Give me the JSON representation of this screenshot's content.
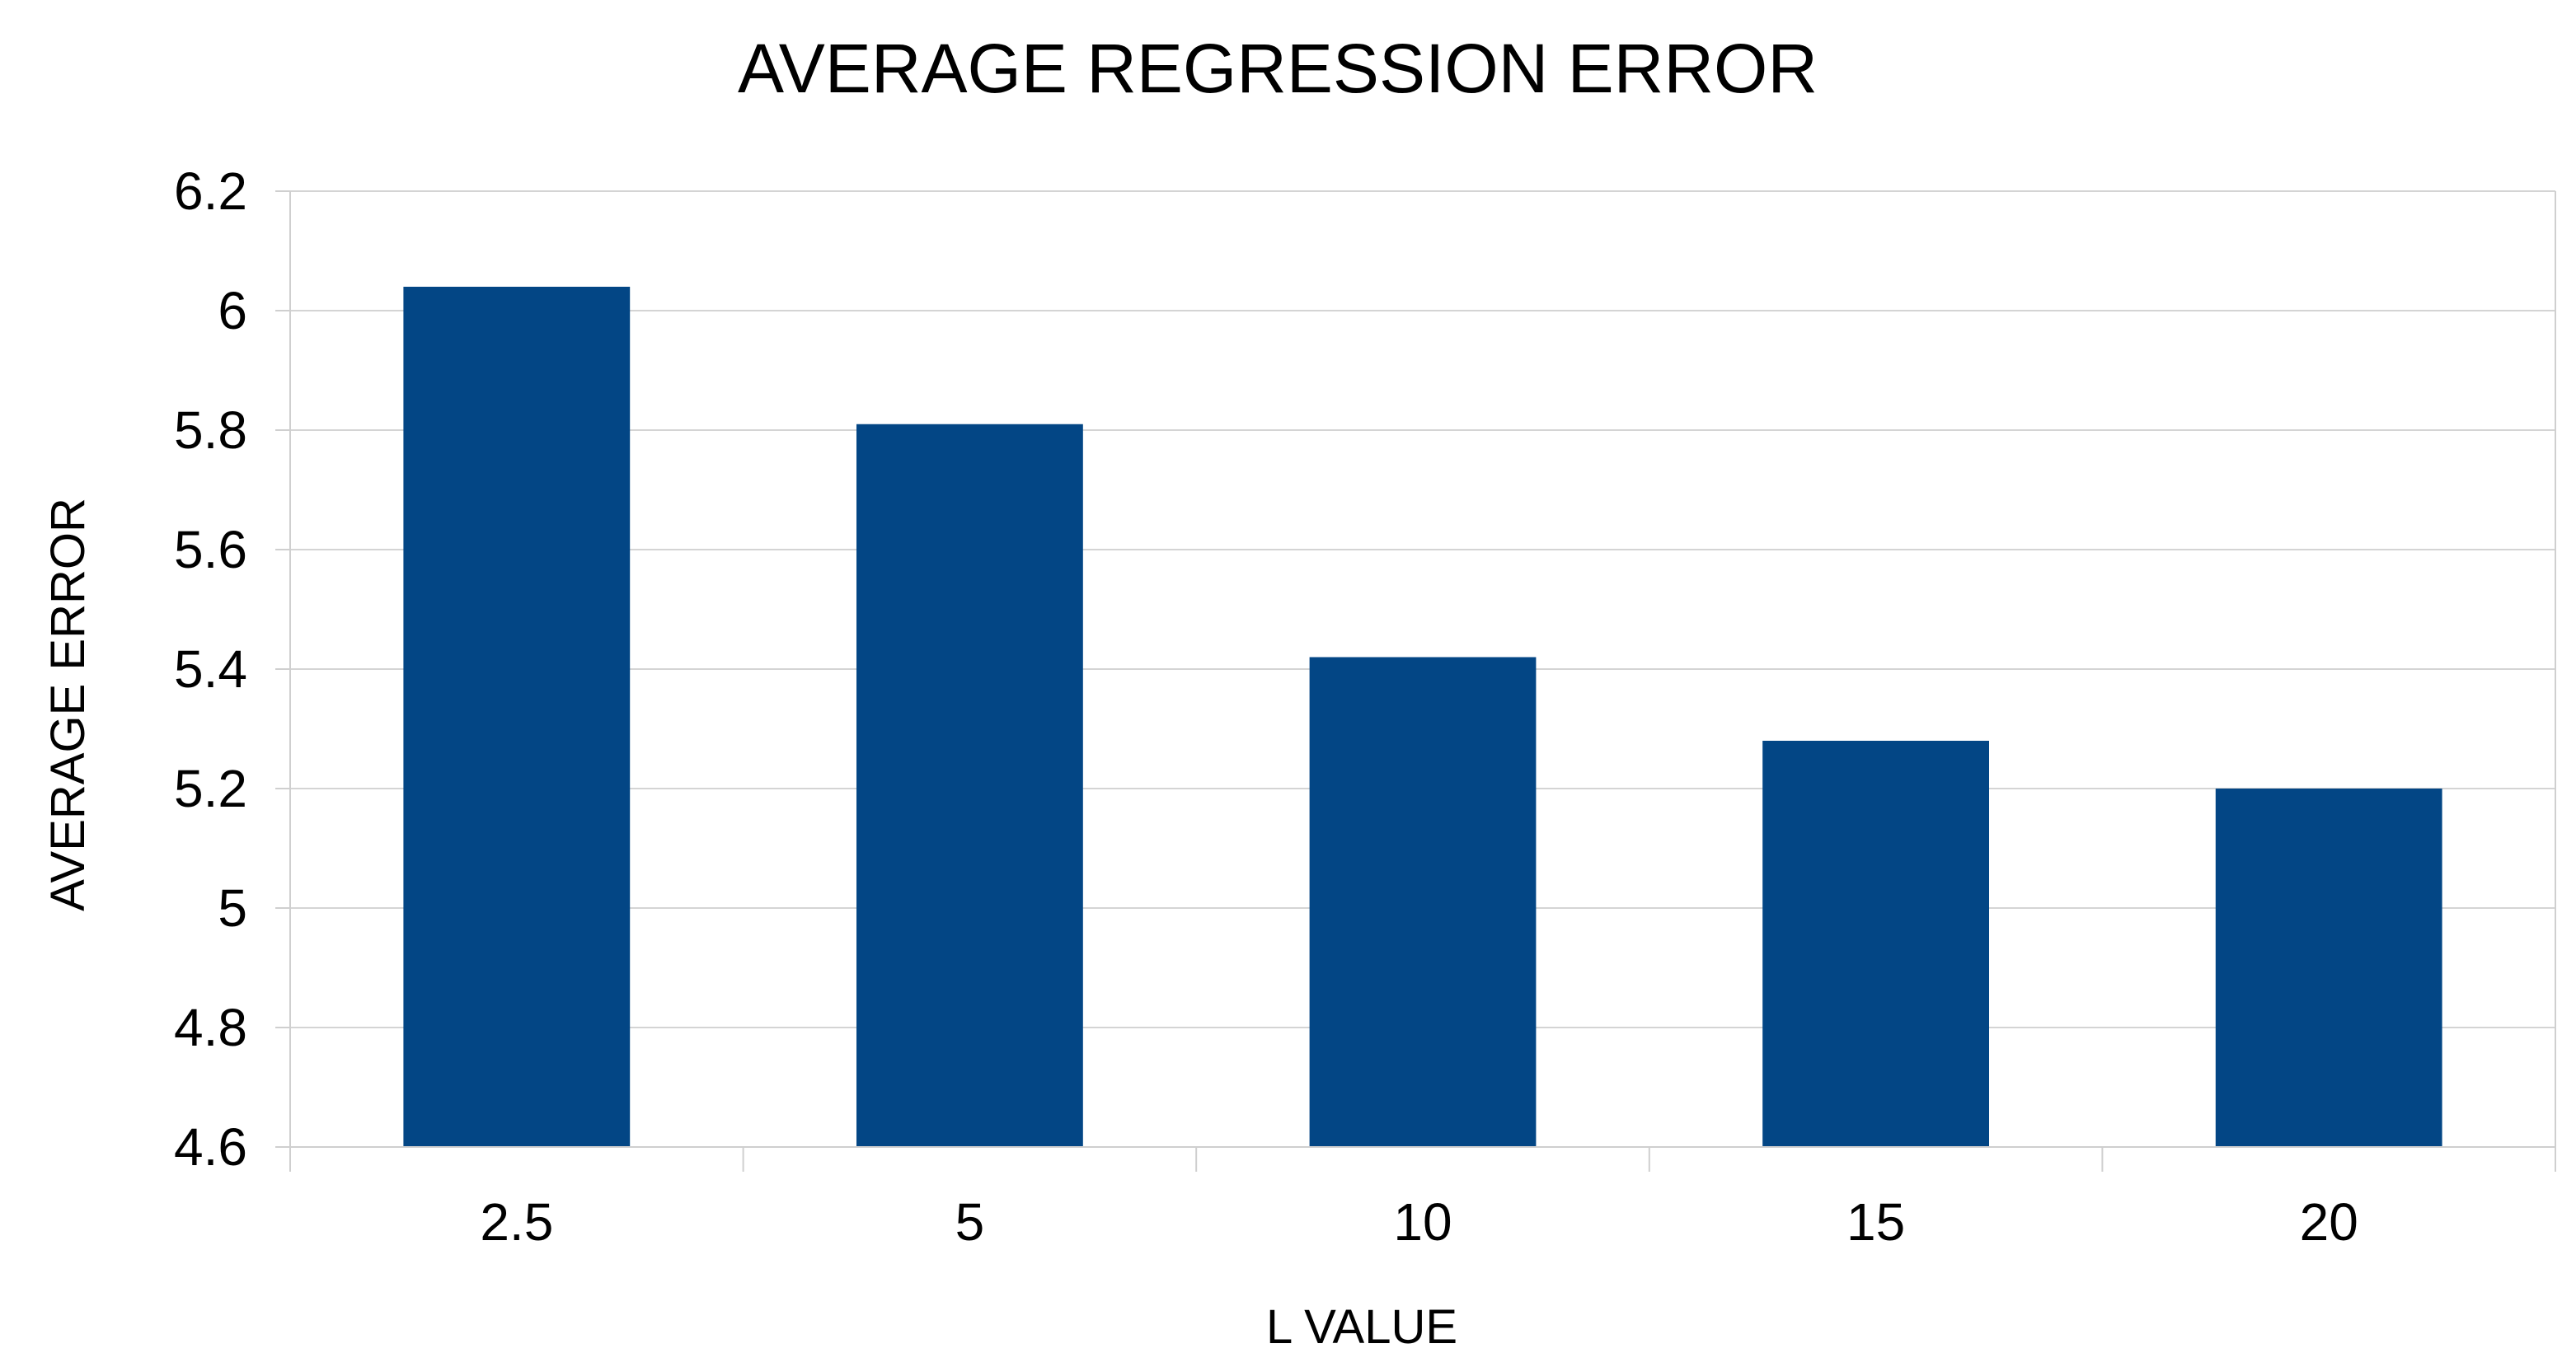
{
  "chart_data": {
    "type": "bar",
    "title": "AVERAGE REGRESSION ERROR",
    "xlabel": "L VALUE",
    "ylabel": "AVERAGE ERROR",
    "categories": [
      "2.5",
      "5",
      "10",
      "15",
      "20"
    ],
    "values": [
      6.04,
      5.81,
      5.42,
      5.28,
      5.2
    ],
    "ylim": [
      4.6,
      6.2
    ],
    "yticks": [
      "4.6",
      "4.8",
      "5",
      "5.2",
      "5.4",
      "5.6",
      "5.8",
      "6",
      "6.2"
    ],
    "grid": true,
    "bar_color": "#034685"
  }
}
